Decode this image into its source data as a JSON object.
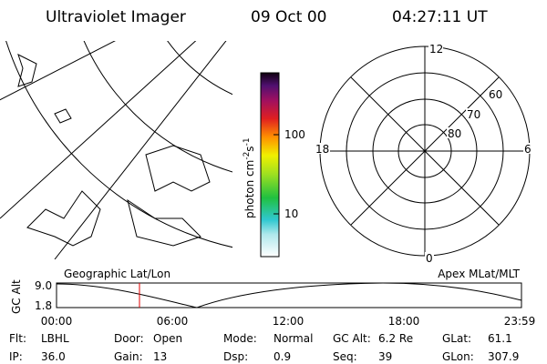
{
  "header": {
    "instrument": "Ultraviolet Imager",
    "date": "09 Oct 00",
    "time": "04:27:11 UT"
  },
  "colorbar": {
    "label": "photon cm",
    "exp1": "-2",
    "unit2": "s",
    "exp2": "-1",
    "ticks": [
      "100",
      "10"
    ]
  },
  "polar": {
    "mlt_labels": [
      "12",
      "18",
      "6",
      "0"
    ],
    "mlat_labels": [
      "60",
      "70",
      "80"
    ]
  },
  "orbit": {
    "left_label": "Geographic Lat/Lon",
    "right_label": "Apex MLat/MLT",
    "y_label": "GC Alt",
    "y_ticks": [
      "9.0",
      "1.8"
    ],
    "x_ticks": [
      "00:00",
      "06:00",
      "12:00",
      "18:00",
      "23:59"
    ]
  },
  "footer": {
    "rows": [
      [
        [
          "Flt:",
          "LBHL"
        ],
        [
          "Door:",
          "Open"
        ],
        [
          "Mode:",
          "Normal"
        ],
        [
          "GC Alt:",
          "6.2 Re"
        ],
        [
          "GLat:",
          "61.1"
        ]
      ],
      [
        [
          "IP:",
          "36.0"
        ],
        [
          "Gain:",
          "13"
        ],
        [
          "Dsp:",
          "0.9"
        ],
        [
          "Seq:",
          "39"
        ],
        [
          "GLon:",
          "307.9"
        ]
      ]
    ]
  }
}
